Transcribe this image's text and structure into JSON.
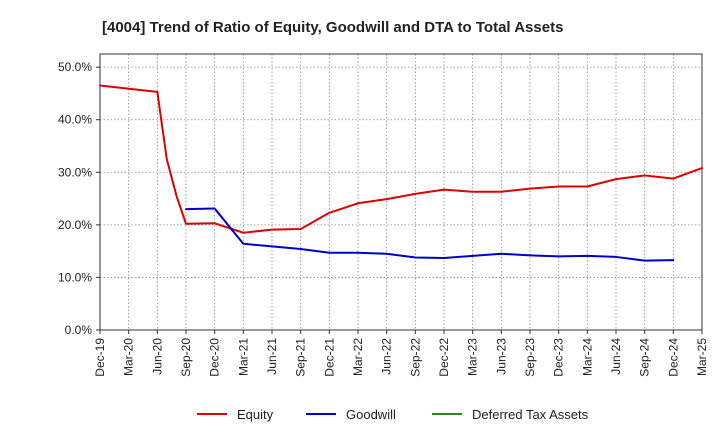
{
  "chart_data": {
    "type": "line",
    "title": "[4004]  Trend of Ratio of Equity, Goodwill and DTA to Total Assets",
    "xlabel": "",
    "ylabel": "",
    "ylim": [
      0,
      52.5
    ],
    "y_ticks": [
      0,
      10,
      20,
      30,
      40,
      50
    ],
    "y_tick_labels": [
      "0.0%",
      "10.0%",
      "20.0%",
      "30.0%",
      "40.0%",
      "50.0%"
    ],
    "x_tick_labels": [
      "Dec-19",
      "Mar-20",
      "Jun-20",
      "Sep-20",
      "Dec-20",
      "Mar-21",
      "Jun-21",
      "Sep-21",
      "Dec-21",
      "Mar-22",
      "Jun-22",
      "Sep-22",
      "Dec-22",
      "Mar-23",
      "Jun-23",
      "Sep-23",
      "Dec-23",
      "Mar-24",
      "Jun-24",
      "Sep-24",
      "Dec-24",
      "Mar-25"
    ],
    "grid": true,
    "legend_position": "bottom",
    "series": [
      {
        "name": "Equity",
        "color": "#dd0000",
        "points": [
          [
            0,
            46.5
          ],
          [
            1,
            45.9
          ],
          [
            2,
            45.3
          ],
          [
            2.33,
            32.5
          ],
          [
            2.67,
            25.5
          ],
          [
            3,
            20.2
          ],
          [
            4,
            20.3
          ],
          [
            5,
            18.5
          ],
          [
            6,
            19.1
          ],
          [
            7,
            19.2
          ],
          [
            8,
            22.3
          ],
          [
            9,
            24.1
          ],
          [
            10,
            24.9
          ],
          [
            11,
            25.9
          ],
          [
            12,
            26.7
          ],
          [
            13,
            26.3
          ],
          [
            14,
            26.3
          ],
          [
            15,
            26.9
          ],
          [
            16,
            27.3
          ],
          [
            17,
            27.3
          ],
          [
            18,
            28.7
          ],
          [
            19,
            29.4
          ],
          [
            20,
            28.8
          ],
          [
            21,
            30.8
          ]
        ]
      },
      {
        "name": "Goodwill",
        "color": "#0000cc",
        "points": [
          [
            3,
            23.0
          ],
          [
            4,
            23.1
          ],
          [
            5,
            16.4
          ],
          [
            6,
            15.9
          ],
          [
            7,
            15.4
          ],
          [
            8,
            14.7
          ],
          [
            9,
            14.7
          ],
          [
            10,
            14.5
          ],
          [
            11,
            13.8
          ],
          [
            12,
            13.7
          ],
          [
            13,
            14.1
          ],
          [
            14,
            14.5
          ],
          [
            15,
            14.2
          ],
          [
            16,
            14.0
          ],
          [
            17,
            14.1
          ],
          [
            18,
            13.9
          ],
          [
            19,
            13.2
          ],
          [
            20,
            13.3
          ]
        ]
      },
      {
        "name": "Deferred Tax Assets",
        "color": "#228b22",
        "points": []
      }
    ]
  }
}
